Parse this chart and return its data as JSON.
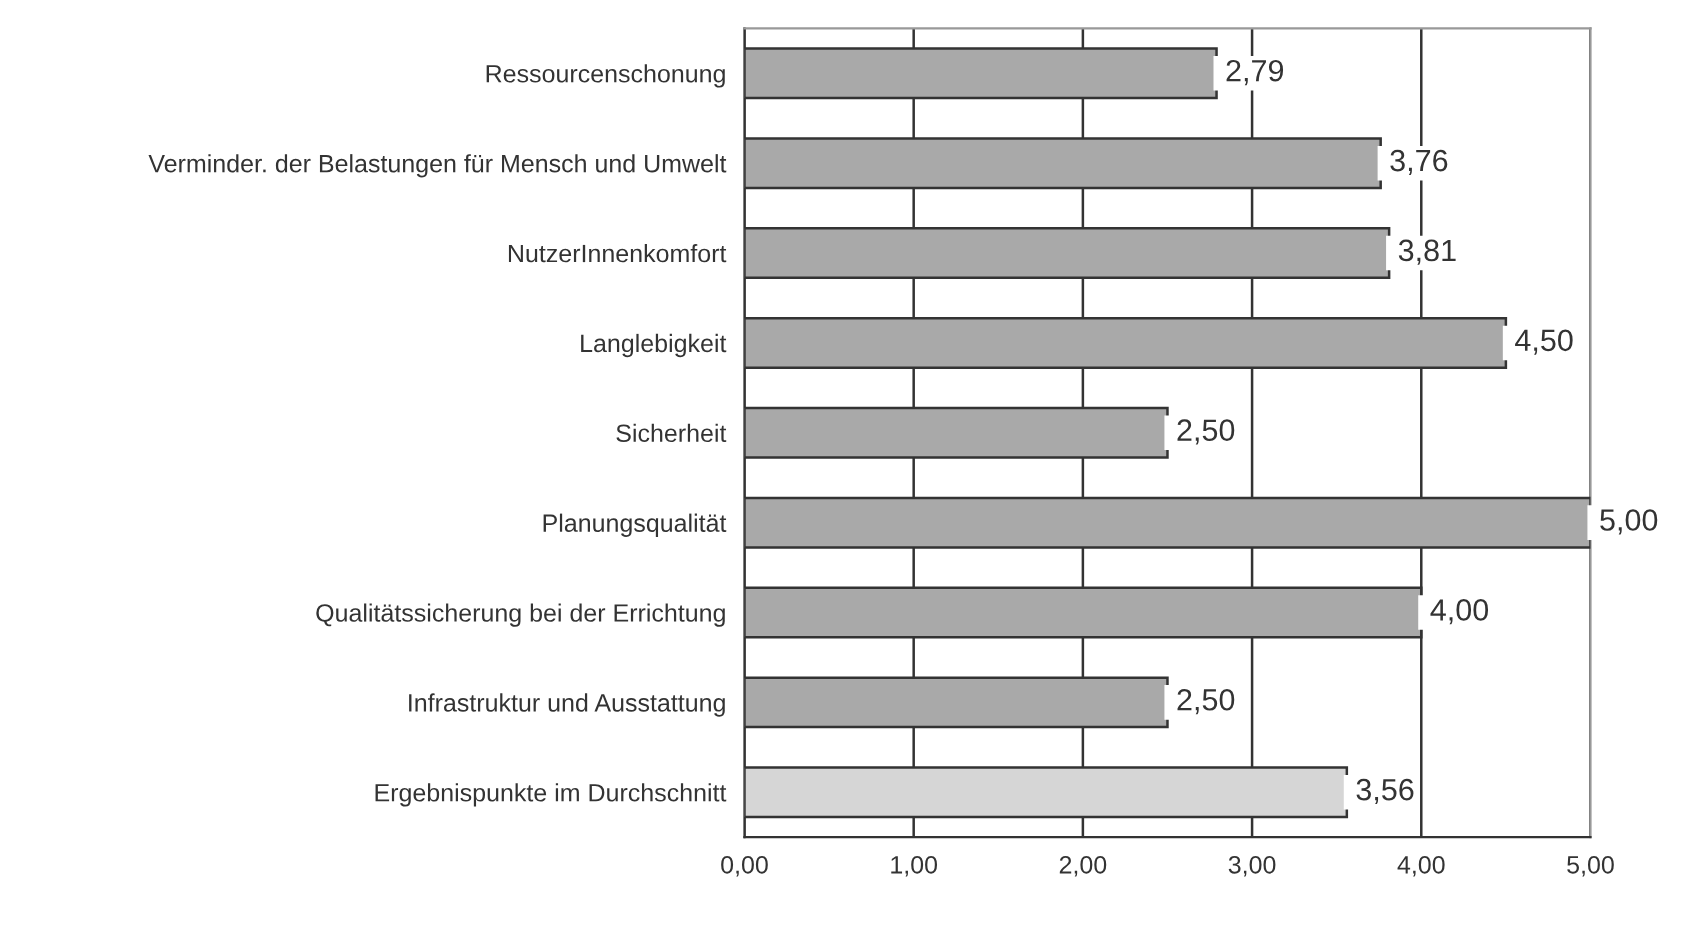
{
  "chart_data": {
    "type": "bar",
    "orientation": "horizontal",
    "categories": [
      "Ressourcenschonung",
      "Verminder. der Belastungen für Mensch und Umwelt",
      "NutzerInnenkomfort",
      "Langlebigkeit",
      "Sicherheit",
      "Planungsqualität",
      "Qualitätssicherung bei der Errichtung",
      "Infrastruktur und Ausstattung",
      "Ergebnispunkte im Durchschnitt"
    ],
    "values": [
      2.79,
      3.76,
      3.81,
      4.5,
      2.5,
      5.0,
      4.0,
      2.5,
      3.56
    ],
    "value_labels": [
      "2,79",
      "3,76",
      "3,81",
      "4,50",
      "2,50",
      "5,00",
      "4,00",
      "2,50",
      "3,56"
    ],
    "colors": [
      "#a9a9a9",
      "#a9a9a9",
      "#a9a9a9",
      "#a9a9a9",
      "#a9a9a9",
      "#a9a9a9",
      "#a9a9a9",
      "#a9a9a9",
      "#d6d6d6"
    ],
    "xlim": [
      0,
      5
    ],
    "xticks": [
      {
        "value": 0,
        "label": "0,00"
      },
      {
        "value": 1,
        "label": "1,00"
      },
      {
        "value": 2,
        "label": "2,00"
      },
      {
        "value": 3,
        "label": "3,00"
      },
      {
        "value": 4,
        "label": "4,00"
      },
      {
        "value": 5,
        "label": "5,00"
      }
    ],
    "grid": "x",
    "legend": false
  }
}
